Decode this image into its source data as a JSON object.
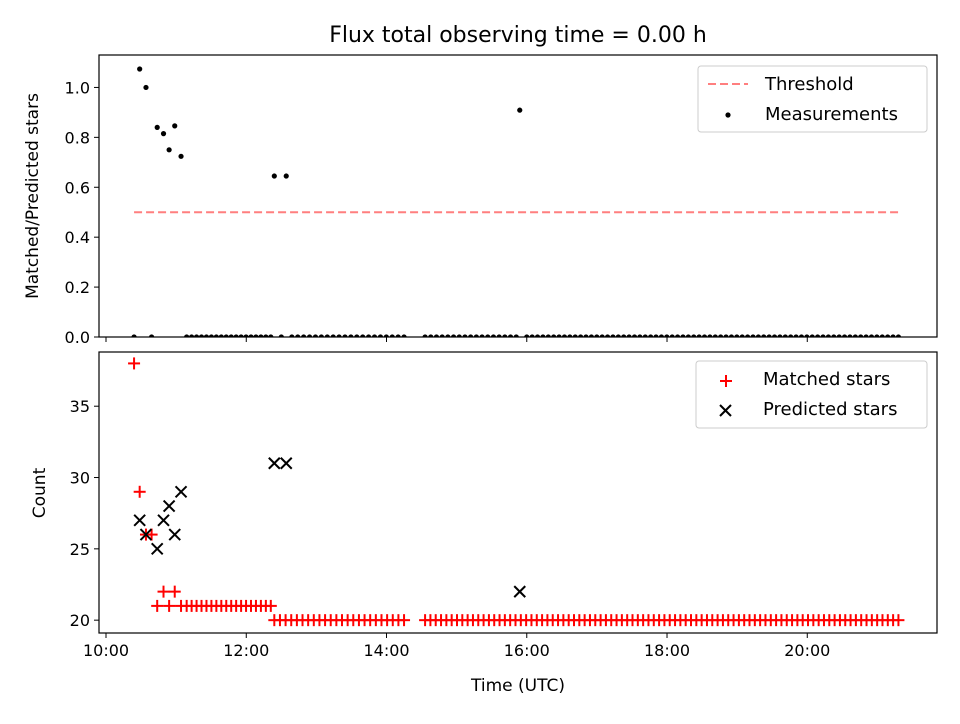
{
  "chart_data": [
    {
      "type": "scatter",
      "title": "Flux total observing time = 0.00 h",
      "xlabel": "",
      "ylabel": "Matched/Predicted stars",
      "xlim": [
        9.9,
        21.85
      ],
      "ylim": [
        0.0,
        1.13
      ],
      "yticks": [
        0.0,
        0.2,
        0.4,
        0.6,
        0.8,
        1.0
      ],
      "ytick_labels": [
        "0.0",
        "0.2",
        "0.4",
        "0.6",
        "0.8",
        "1.0"
      ],
      "xticks": [
        10,
        12,
        14,
        16,
        18,
        20
      ],
      "legend": {
        "placement": "top-right",
        "entries": [
          "Threshold",
          "Measurements"
        ]
      },
      "series": [
        {
          "name": "Threshold",
          "kind": "line",
          "style": "dashed",
          "color": "#ff7f7f",
          "x": [
            10.4,
            21.3
          ],
          "y": [
            0.5,
            0.5
          ]
        },
        {
          "name": "Measurements",
          "kind": "scatter",
          "color": "#000000",
          "points": [
            [
              10.4,
              0.0
            ],
            [
              10.48,
              1.074
            ],
            [
              10.57,
              1.0
            ],
            [
              10.65,
              0.0
            ],
            [
              10.73,
              0.84
            ],
            [
              10.82,
              0.815
            ],
            [
              10.9,
              0.75
            ],
            [
              10.98,
              0.846
            ],
            [
              11.07,
              0.724
            ],
            [
              12.4,
              0.645
            ],
            [
              12.57,
              0.645
            ],
            [
              15.9,
              0.909
            ]
          ],
          "zero_runs": [
            [
              11.15,
              12.35,
              18
            ],
            [
              12.5,
              12.5,
              1
            ],
            [
              12.65,
              14.25,
              20
            ],
            [
              14.55,
              15.85,
              17
            ],
            [
              16.0,
              21.3,
              70
            ]
          ]
        }
      ]
    },
    {
      "type": "scatter",
      "title": "",
      "xlabel": "Time (UTC)",
      "ylabel": "Count",
      "xlim": [
        9.9,
        21.85
      ],
      "ylim": [
        19.1,
        38.8
      ],
      "yticks": [
        20,
        25,
        30,
        35
      ],
      "ytick_labels": [
        "20",
        "25",
        "30",
        "35"
      ],
      "xticks": [
        10,
        12,
        14,
        16,
        18,
        20
      ],
      "xtick_labels": [
        "10:00",
        "12:00",
        "14:00",
        "16:00",
        "18:00",
        "20:00"
      ],
      "legend": {
        "placement": "top-right",
        "entries": [
          "Matched stars",
          "Predicted stars"
        ]
      },
      "series": [
        {
          "name": "Matched stars",
          "marker": "plus",
          "color": "#ff0000",
          "points": [
            [
              10.4,
              38
            ],
            [
              10.48,
              29
            ],
            [
              10.57,
              26
            ],
            [
              10.65,
              26
            ],
            [
              10.73,
              21
            ],
            [
              10.82,
              22
            ],
            [
              10.9,
              21
            ],
            [
              10.98,
              22
            ],
            [
              11.07,
              21
            ]
          ],
          "runs": [
            [
              11.15,
              12.35,
              18,
              21
            ],
            [
              12.4,
              14.25,
              24,
              20
            ],
            [
              14.55,
              21.3,
              90,
              20
            ]
          ]
        },
        {
          "name": "Predicted stars",
          "marker": "x",
          "color": "#000000",
          "points": [
            [
              10.48,
              27
            ],
            [
              10.57,
              26
            ],
            [
              10.73,
              25
            ],
            [
              10.82,
              27
            ],
            [
              10.9,
              28
            ],
            [
              10.98,
              26
            ],
            [
              11.07,
              29
            ],
            [
              12.4,
              31
            ],
            [
              12.57,
              31
            ],
            [
              15.9,
              22
            ]
          ]
        }
      ]
    }
  ]
}
